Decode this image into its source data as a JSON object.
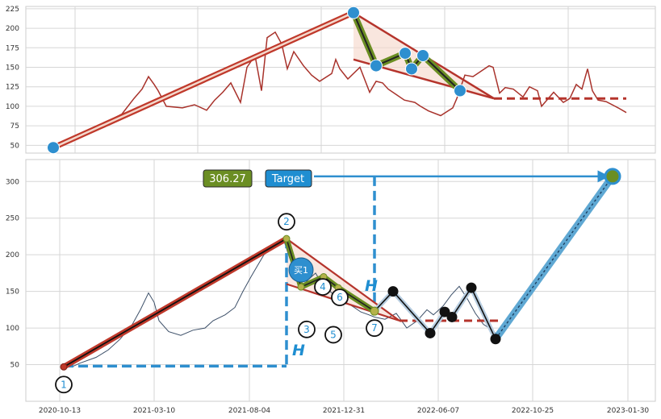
{
  "chart_data": [
    {
      "type": "line",
      "title": "",
      "ylim": [
        40,
        228
      ],
      "yticks": [
        50,
        75,
        100,
        125,
        150,
        175,
        200,
        225
      ],
      "series": [
        {
          "values": [
            [
              0,
              50
            ],
            [
              30,
              58
            ],
            [
              50,
              70
            ],
            [
              70,
              82
            ],
            [
              85,
              90
            ],
            [
              100,
              110
            ],
            [
              110,
              122
            ],
            [
              118,
              138
            ],
            [
              125,
              128
            ],
            [
              130,
              120
            ],
            [
              140,
              100
            ],
            [
              160,
              98
            ],
            [
              175,
              102
            ],
            [
              190,
              95
            ],
            [
              200,
              108
            ],
            [
              210,
              118
            ],
            [
              220,
              130
            ],
            [
              232,
              105
            ],
            [
              240,
              150
            ],
            [
              250,
              165
            ],
            [
              258,
              120
            ],
            [
              265,
              188
            ],
            [
              275,
              195
            ],
            [
              283,
              180
            ],
            [
              290,
              148
            ],
            [
              298,
              170
            ],
            [
              310,
              152
            ],
            [
              320,
              140
            ],
            [
              330,
              132
            ],
            [
              345,
              142
            ],
            [
              350,
              160
            ],
            [
              355,
              148
            ],
            [
              365,
              135
            ],
            [
              380,
              150
            ],
            [
              392,
              118
            ],
            [
              400,
              132
            ],
            [
              408,
              130
            ],
            [
              415,
              122
            ],
            [
              425,
              115
            ],
            [
              435,
              108
            ],
            [
              448,
              105
            ],
            [
              455,
              100
            ],
            [
              465,
              94
            ],
            [
              480,
              88
            ],
            [
              495,
              98
            ],
            [
              500,
              110
            ],
            [
              510,
              140
            ],
            [
              520,
              138
            ],
            [
              530,
              145
            ],
            [
              540,
              152
            ],
            [
              545,
              150
            ],
            [
              553,
              117
            ],
            [
              560,
              124
            ],
            [
              570,
              122
            ],
            [
              582,
              112
            ],
            [
              590,
              125
            ],
            [
              600,
              120
            ],
            [
              605,
              100
            ],
            [
              620,
              118
            ],
            [
              632,
              105
            ],
            [
              640,
              110
            ],
            [
              648,
              128
            ],
            [
              655,
              122
            ],
            [
              662,
              148
            ],
            [
              668,
              120
            ],
            [
              675,
              108
            ],
            [
              685,
              106
            ],
            [
              700,
              98
            ],
            [
              710,
              92
            ]
          ]
        },
        {
          "values": [
            [
              0,
              47
            ],
            [
              372,
              220
            ]
          ]
        },
        {
          "values": [
            [
              372,
              220
            ],
            [
              400,
              152
            ],
            [
              436,
              168
            ],
            [
              444,
              148
            ],
            [
              458,
              165
            ],
            [
              504,
              120
            ]
          ]
        },
        {
          "values": [
            [
              372,
              220
            ],
            [
              546,
              110
            ]
          ]
        },
        {
          "values": [
            [
              372,
              160
            ],
            [
              546,
              110
            ]
          ]
        },
        {
          "values": [
            [
              546,
              110
            ],
            [
              710,
              110
            ]
          ]
        }
      ],
      "markers": [
        [
          0,
          47
        ],
        [
          372,
          220
        ],
        [
          400,
          152
        ],
        [
          436,
          168
        ],
        [
          444,
          148
        ],
        [
          458,
          165
        ],
        [
          504,
          120
        ]
      ]
    },
    {
      "type": "line",
      "title": "",
      "x_tick_labels": [
        "2020-10-13",
        "2021-03-10",
        "2021-08-04",
        "2021-12-31",
        "2022-06-07",
        "2022-10-25",
        "2023-01-30"
      ],
      "ylim": [
        0,
        330
      ],
      "yticks": [
        50,
        100,
        150,
        200,
        250,
        300
      ],
      "series": [
        {
          "values": [
            [
              0,
              50
            ],
            [
              10,
              47
            ],
            [
              20,
              52
            ],
            [
              40,
              60
            ],
            [
              55,
              70
            ],
            [
              70,
              85
            ],
            [
              85,
              105
            ],
            [
              95,
              125
            ],
            [
              105,
              148
            ],
            [
              112,
              135
            ],
            [
              118,
              110
            ],
            [
              130,
              95
            ],
            [
              145,
              90
            ],
            [
              160,
              97
            ],
            [
              175,
              100
            ],
            [
              185,
              110
            ],
            [
              200,
              118
            ],
            [
              212,
              128
            ],
            [
              222,
              150
            ],
            [
              232,
              170
            ],
            [
              240,
              185
            ],
            [
              248,
              200
            ],
            [
              258,
              210
            ],
            [
              265,
              215
            ],
            [
              272,
              222
            ],
            [
              280,
              195
            ],
            [
              288,
              172
            ],
            [
              295,
              155
            ],
            [
              302,
              165
            ],
            [
              312,
              175
            ],
            [
              320,
              160
            ],
            [
              330,
              150
            ],
            [
              340,
              140
            ],
            [
              350,
              135
            ],
            [
              360,
              128
            ],
            [
              368,
              122
            ],
            [
              378,
              118
            ],
            [
              385,
              115
            ],
            [
              398,
              112
            ],
            [
              412,
              120
            ],
            [
              425,
              100
            ],
            [
              438,
              110
            ],
            [
              450,
              125
            ],
            [
              458,
              118
            ],
            [
              470,
              130
            ],
            [
              480,
              145
            ],
            [
              490,
              157
            ],
            [
              500,
              140
            ],
            [
              510,
              120
            ],
            [
              520,
              105
            ],
            [
              530,
              98
            ],
            [
              538,
              90
            ]
          ]
        },
        {
          "values": [
            [
              0,
              47
            ],
            [
              276,
              222
            ]
          ]
        },
        {
          "values": [
            [
              276,
              222
            ],
            [
              294,
              156
            ],
            [
              322,
              170
            ],
            [
              340,
              155
            ],
            [
              385,
              123
            ]
          ]
        },
        {
          "values": [
            [
              385,
              123
            ],
            [
              408,
              150
            ],
            [
              454,
              93
            ],
            [
              472,
              122
            ],
            [
              481,
              115
            ],
            [
              505,
              155
            ],
            [
              535,
              85
            ]
          ]
        },
        {
          "values": [
            [
              535,
              85
            ],
            [
              680,
              307
            ]
          ]
        },
        {
          "values": [
            [
              276,
              222
            ],
            [
              416,
              110
            ]
          ]
        },
        {
          "values": [
            [
              276,
              160
            ],
            [
              416,
              110
            ]
          ]
        },
        {
          "values": [
            [
              416,
              110
            ],
            [
              540,
              110
            ]
          ]
        },
        {
          "values": [
            [
              0,
              48
            ],
            [
              276,
              48
            ]
          ]
        },
        {
          "values": [
            [
              385,
              307
            ],
            [
              385,
              125
            ]
          ]
        },
        {
          "values": [
            [
              310,
              307
            ],
            [
              675,
              307
            ]
          ]
        }
      ],
      "wave_labels": [
        {
          "label": "1",
          "x": 0,
          "y": 47
        },
        {
          "label": "2",
          "x": 276,
          "y": 222
        },
        {
          "label": "3",
          "x": 294,
          "y": 156
        },
        {
          "label": "4",
          "x": 322,
          "y": 170
        },
        {
          "label": "5",
          "x": 340,
          "y": 155
        },
        {
          "label": "6",
          "x": 340,
          "y": 155
        },
        {
          "label": "7",
          "x": 385,
          "y": 123
        }
      ],
      "black_markers": [
        [
          408,
          150
        ],
        [
          454,
          93
        ],
        [
          472,
          122
        ],
        [
          481,
          115
        ],
        [
          505,
          155
        ],
        [
          535,
          85
        ]
      ],
      "annotations": {
        "buy_label": "买1",
        "h_label": "H",
        "target_value": "306.27",
        "target_label": "Target"
      },
      "colors": {
        "accent": "#2e8fcf",
        "target_box": "#6b8e23",
        "red": "#b5342c",
        "olive": "#6b8e23",
        "price_line": "#3c4f68"
      }
    }
  ]
}
